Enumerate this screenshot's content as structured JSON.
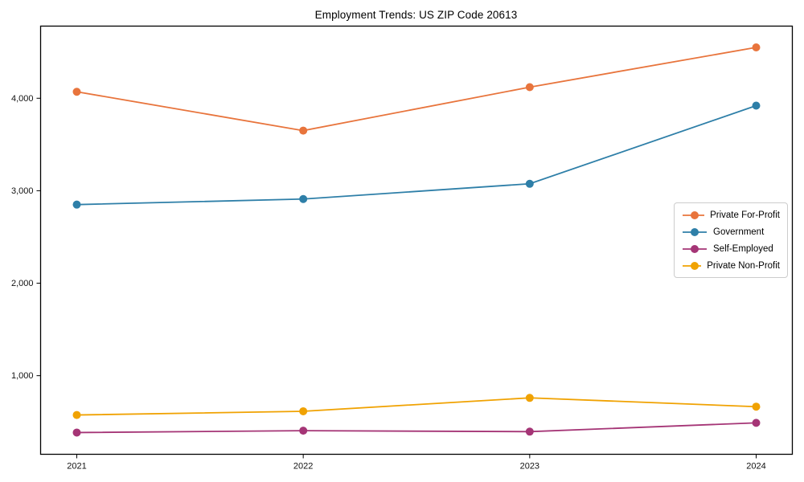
{
  "page": {
    "background": "#ffffff",
    "axis_color": "#000000"
  },
  "chart_data": {
    "type": "line",
    "title": "Employment Trends: US ZIP Code 20613",
    "categories": [
      "2021",
      "2022",
      "2023",
      "2024"
    ],
    "series": [
      {
        "name": "Private For-Profit",
        "color": "#e8743c",
        "values": [
          4070,
          3650,
          4120,
          4550
        ]
      },
      {
        "name": "Government",
        "color": "#2e7fa8",
        "values": [
          2850,
          2910,
          3075,
          3920
        ]
      },
      {
        "name": "Self-Employed",
        "color": "#a53576",
        "values": [
          385,
          405,
          395,
          490
        ]
      },
      {
        "name": "Private Non-Profit",
        "color": "#f0a202",
        "values": [
          575,
          615,
          760,
          665
        ]
      }
    ],
    "xlabel": "",
    "ylabel": "",
    "ylim": [
      150,
      4780
    ],
    "yticks": [
      {
        "value": 1000,
        "label": "1,000"
      },
      {
        "value": 2000,
        "label": "2,000"
      },
      {
        "value": 3000,
        "label": "3,000"
      },
      {
        "value": 4000,
        "label": "4,000"
      }
    ],
    "grid": false,
    "legend_position": "right-middle",
    "marker": "circle",
    "line_width": 1.8,
    "marker_radius": 5
  }
}
